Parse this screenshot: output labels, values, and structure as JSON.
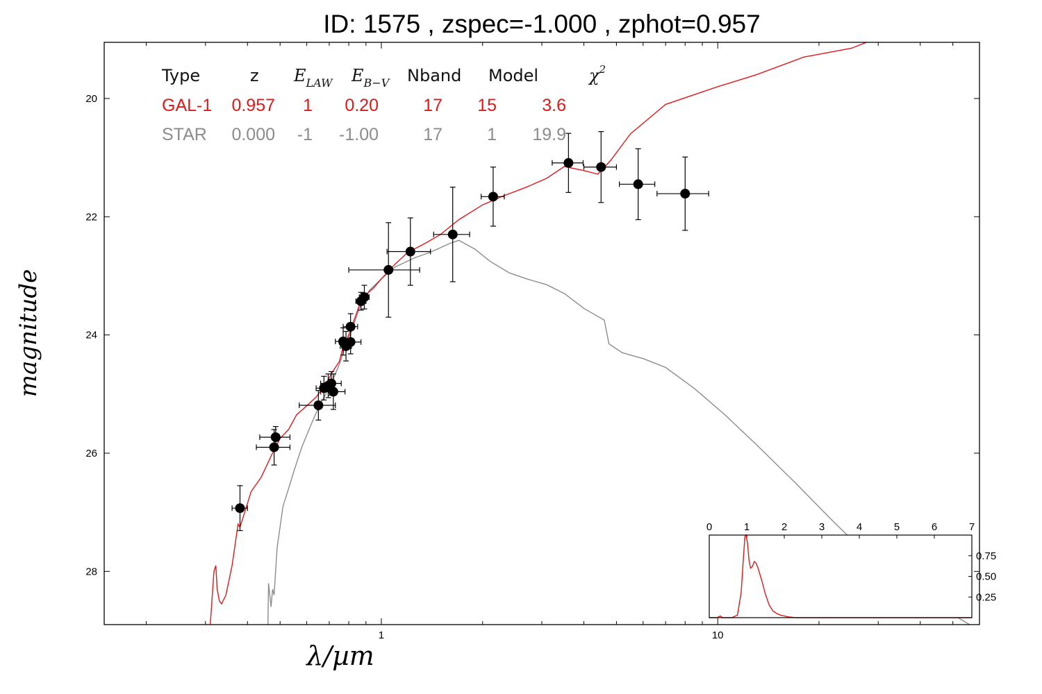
{
  "title": "ID:  1575  , zspec=-1.000 , zphot=0.957",
  "colors": {
    "galaxy": "#e01818",
    "star": "#8c8c8c",
    "points": "#000000"
  },
  "chart_data": [
    {
      "type": "scatter",
      "xlabel": "λ/µm",
      "ylabel": "magnitude",
      "xscale": "log",
      "xlim": [
        0.15,
        60
      ],
      "ylim": [
        28.9,
        19.05
      ],
      "x_ticks": [
        {
          "value": 1,
          "label": "1"
        },
        {
          "value": 10,
          "label": "10"
        }
      ],
      "y_ticks": [
        {
          "value": 20,
          "label": "20"
        },
        {
          "value": 22,
          "label": "22"
        },
        {
          "value": 24,
          "label": "24"
        },
        {
          "value": 26,
          "label": "26"
        },
        {
          "value": 28,
          "label": "28"
        }
      ],
      "grid": false,
      "fit_table": {
        "headers": [
          "Type",
          "z",
          "E_LAW",
          "E_B-V",
          "Nband",
          "Model",
          "χ²"
        ],
        "header_display": [
          "Type",
          "z",
          "E",
          "E",
          "Nband",
          "Model",
          "χ"
        ],
        "header_subscripts": [
          "",
          "",
          "LAW",
          "B−V",
          "",
          "",
          ""
        ],
        "header_superscripts": [
          "",
          "",
          "",
          "",
          "",
          "",
          "2"
        ],
        "rows": [
          {
            "name": "GAL-1",
            "values": [
              "0.957",
              "1",
              "0.20",
              "17",
              "15",
              "3.6"
            ]
          },
          {
            "name": "STAR",
            "values": [
              "0.000",
              "-1",
              "-1.00",
              "17",
              "1",
              "19.9"
            ]
          }
        ]
      },
      "photometry": [
        {
          "x": 0.38,
          "y": 26.93,
          "xerr": 0.02,
          "yerr": 0.38
        },
        {
          "x": 0.48,
          "y": 25.9,
          "xerr": 0.055,
          "yerr": 0.3
        },
        {
          "x": 0.485,
          "y": 25.73,
          "xerr": 0.05,
          "yerr": 0.18
        },
        {
          "x": 0.65,
          "y": 25.19,
          "xerr": 0.08,
          "yerr": 0.25
        },
        {
          "x": 0.675,
          "y": 24.9,
          "xerr": 0.035,
          "yerr": 0.2
        },
        {
          "x": 0.695,
          "y": 24.86,
          "xerr": 0.03,
          "yerr": 0.2
        },
        {
          "x": 0.71,
          "y": 24.82,
          "xerr": 0.05,
          "yerr": 0.2
        },
        {
          "x": 0.72,
          "y": 24.96,
          "xerr": 0.06,
          "yerr": 0.3
        },
        {
          "x": 0.77,
          "y": 24.11,
          "xerr": 0.04,
          "yerr": 0.23
        },
        {
          "x": 0.785,
          "y": 24.19,
          "xerr": 0.03,
          "yerr": 0.25
        },
        {
          "x": 0.81,
          "y": 24.12,
          "xerr": 0.06,
          "yerr": 0.2
        },
        {
          "x": 0.81,
          "y": 23.86,
          "xerr": 0.04,
          "yerr": 0.22
        },
        {
          "x": 0.87,
          "y": 23.43,
          "xerr": 0.03,
          "yerr": 0.15
        },
        {
          "x": 0.89,
          "y": 23.36,
          "xerr": 0.03,
          "yerr": 0.2
        },
        {
          "x": 1.05,
          "y": 22.9,
          "xerr": 0.25,
          "yerr": 0.8
        },
        {
          "x": 1.22,
          "y": 22.59,
          "xerr": 0.18,
          "yerr": 0.57
        },
        {
          "x": 1.63,
          "y": 22.3,
          "xerr": 0.2,
          "yerr": 0.8
        },
        {
          "x": 2.15,
          "y": 21.66,
          "xerr": 0.17,
          "yerr": 0.5
        },
        {
          "x": 3.6,
          "y": 21.09,
          "xerr": 0.38,
          "yerr": 0.5
        },
        {
          "x": 4.5,
          "y": 21.16,
          "xerr": 0.5,
          "yerr": 0.6
        },
        {
          "x": 5.8,
          "y": 21.45,
          "xerr": 0.7,
          "yerr": 0.6
        },
        {
          "x": 8.0,
          "y": 21.61,
          "xerr": 1.4,
          "yerr": 0.62
        }
      ],
      "series": [
        {
          "id": "GAL-1",
          "points": [
            [
              0.31,
              28.9
            ],
            [
              0.318,
              28.0
            ],
            [
              0.322,
              27.9
            ],
            [
              0.325,
              28.3
            ],
            [
              0.33,
              28.5
            ],
            [
              0.335,
              28.55
            ],
            [
              0.345,
              28.4
            ],
            [
              0.36,
              27.9
            ],
            [
              0.375,
              27.2
            ],
            [
              0.38,
              27.25
            ],
            [
              0.39,
              27.05
            ],
            [
              0.41,
              26.65
            ],
            [
              0.44,
              26.4
            ],
            [
              0.47,
              26.05
            ],
            [
              0.5,
              25.75
            ],
            [
              0.53,
              25.6
            ],
            [
              0.56,
              25.35
            ],
            [
              0.6,
              25.2
            ],
            [
              0.64,
              25.05
            ],
            [
              0.68,
              24.85
            ],
            [
              0.72,
              24.6
            ],
            [
              0.75,
              24.45
            ],
            [
              0.77,
              24.2
            ],
            [
              0.8,
              24.0
            ],
            [
              0.83,
              23.75
            ],
            [
              0.86,
              23.5
            ],
            [
              0.9,
              23.32
            ],
            [
              0.95,
              23.2
            ],
            [
              1.0,
              23.05
            ],
            [
              1.1,
              22.8
            ],
            [
              1.2,
              22.6
            ],
            [
              1.35,
              22.45
            ],
            [
              1.5,
              22.3
            ],
            [
              1.7,
              22.05
            ],
            [
              2.0,
              21.8
            ],
            [
              2.3,
              21.65
            ],
            [
              2.7,
              21.5
            ],
            [
              3.1,
              21.35
            ],
            [
              3.5,
              21.15
            ],
            [
              4.0,
              21.22
            ],
            [
              4.4,
              21.28
            ],
            [
              4.8,
              21.05
            ],
            [
              5.5,
              20.6
            ],
            [
              7.0,
              20.1
            ],
            [
              10,
              19.8
            ],
            [
              13,
              19.6
            ],
            [
              18,
              19.3
            ],
            [
              25,
              19.15
            ],
            [
              35,
              18.82
            ],
            [
              50,
              18.4
            ]
          ]
        },
        {
          "id": "STAR",
          "points": [
            [
              0.46,
              28.9
            ],
            [
              0.462,
              28.2
            ],
            [
              0.47,
              28.6
            ],
            [
              0.475,
              28.3
            ],
            [
              0.48,
              28.4
            ],
            [
              0.49,
              27.6
            ],
            [
              0.51,
              26.9
            ],
            [
              0.53,
              26.6
            ],
            [
              0.55,
              26.3
            ],
            [
              0.58,
              25.9
            ],
            [
              0.62,
              25.5
            ],
            [
              0.66,
              25.15
            ],
            [
              0.7,
              24.9
            ],
            [
              0.75,
              24.5
            ],
            [
              0.78,
              24.2
            ],
            [
              0.82,
              23.9
            ],
            [
              0.86,
              23.55
            ],
            [
              0.92,
              23.25
            ],
            [
              1.0,
              23.05
            ],
            [
              1.1,
              22.85
            ],
            [
              1.25,
              22.7
            ],
            [
              1.4,
              22.6
            ],
            [
              1.6,
              22.45
            ],
            [
              1.7,
              22.4
            ],
            [
              1.9,
              22.55
            ],
            [
              2.1,
              22.75
            ],
            [
              2.4,
              22.95
            ],
            [
              2.7,
              23.05
            ],
            [
              3.1,
              23.15
            ],
            [
              3.5,
              23.3
            ],
            [
              4.0,
              23.55
            ],
            [
              4.6,
              23.75
            ],
            [
              4.75,
              24.15
            ],
            [
              5.2,
              24.3
            ],
            [
              6.0,
              24.4
            ],
            [
              7.0,
              24.55
            ],
            [
              8.5,
              24.9
            ],
            [
              10.5,
              25.35
            ],
            [
              13,
              25.85
            ],
            [
              17,
              26.5
            ],
            [
              22,
              27.15
            ],
            [
              30,
              27.9
            ],
            [
              40,
              28.4
            ],
            [
              60,
              29.0
            ]
          ]
        }
      ]
    },
    {
      "type": "line",
      "xlim": [
        0,
        7
      ],
      "ylim": [
        0,
        1.0
      ],
      "x_ticks": [
        "0",
        "1",
        "2",
        "3",
        "4",
        "5",
        "6",
        "7"
      ],
      "y_ticks": [
        {
          "value": 0.25,
          "label": "0.25"
        },
        {
          "value": 0.5,
          "label": "0.50"
        },
        {
          "value": 0.75,
          "label": "0.75"
        }
      ],
      "series": [
        {
          "id": "PDZ",
          "points": [
            [
              0,
              0.0
            ],
            [
              0.2,
              0.0
            ],
            [
              0.3,
              0.02
            ],
            [
              0.35,
              0.0
            ],
            [
              0.6,
              0.0
            ],
            [
              0.75,
              0.03
            ],
            [
              0.85,
              0.3
            ],
            [
              0.9,
              0.65
            ],
            [
              0.95,
              0.98
            ],
            [
              0.98,
              1.0
            ],
            [
              1.02,
              0.9
            ],
            [
              1.06,
              0.7
            ],
            [
              1.1,
              0.6
            ],
            [
              1.15,
              0.62
            ],
            [
              1.2,
              0.68
            ],
            [
              1.25,
              0.66
            ],
            [
              1.3,
              0.6
            ],
            [
              1.4,
              0.45
            ],
            [
              1.5,
              0.28
            ],
            [
              1.6,
              0.15
            ],
            [
              1.7,
              0.08
            ],
            [
              1.8,
              0.05
            ],
            [
              1.9,
              0.03
            ],
            [
              2.0,
              0.02
            ],
            [
              2.1,
              0.01
            ],
            [
              2.3,
              0.0
            ],
            [
              7,
              0.0
            ]
          ]
        }
      ]
    }
  ]
}
